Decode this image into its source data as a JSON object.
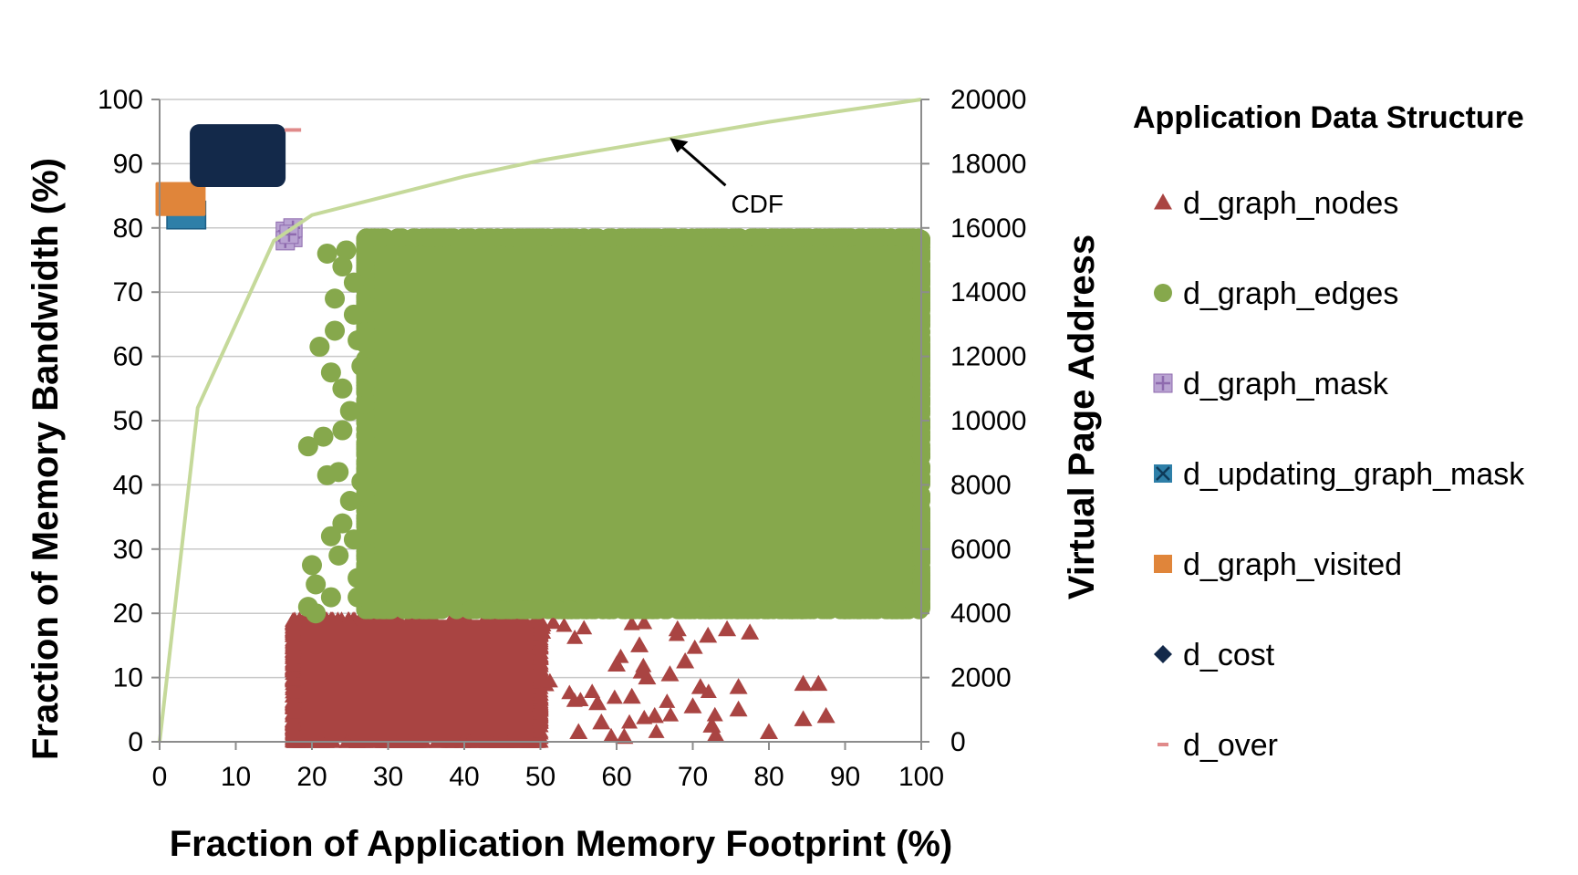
{
  "chart_data": {
    "type": "scatter",
    "title": "",
    "xlabel": "Fraction of Application Memory Footprint (%)",
    "ylabel": "Fraction of Memory Bandwidth (%)",
    "y2label": "Virtual Page Address",
    "xlim": [
      0,
      100
    ],
    "ylim": [
      0,
      100
    ],
    "y2lim": [
      0,
      20000
    ],
    "x_ticks": [
      "0",
      "10",
      "20",
      "30",
      "40",
      "50",
      "60",
      "70",
      "80",
      "90",
      "100"
    ],
    "y_ticks": [
      "0",
      "10",
      "20",
      "30",
      "40",
      "50",
      "60",
      "70",
      "80",
      "90",
      "100"
    ],
    "y2_ticks": [
      "0",
      "2000",
      "4000",
      "6000",
      "8000",
      "10000",
      "12000",
      "14000",
      "16000",
      "18000",
      "20000"
    ],
    "grid": "horizontal",
    "legend": {
      "title": "Application Data Structure",
      "position": "right",
      "entries": [
        {
          "label": "d_graph_nodes",
          "marker": "triangle",
          "color": "#A94442"
        },
        {
          "label": "d_graph_edges",
          "marker": "circle",
          "color": "#86A84C"
        },
        {
          "label": "d_graph_mask",
          "marker": "square-plus",
          "color": "#8E6AAE"
        },
        {
          "label": "d_updating_graph_mask",
          "marker": "square-x",
          "color": "#2E7FA8"
        },
        {
          "label": "d_graph_visited",
          "marker": "square",
          "color": "#E0853A"
        },
        {
          "label": "d_cost",
          "marker": "diamond",
          "color": "#13294A"
        },
        {
          "label": "d_over",
          "marker": "dash",
          "color": "#E08A8A"
        }
      ]
    },
    "series": [
      {
        "name": "d_graph_nodes",
        "axis": "y2",
        "regions": [
          {
            "x": [
              17.5,
              50
            ],
            "y2": [
              0,
              3800
            ],
            "density": "dense"
          },
          {
            "x": [
              50,
              73
            ],
            "y2": [
              0,
              3800
            ],
            "density": "sparse"
          }
        ],
        "points": [
          [
            80,
            300
          ],
          [
            84.5,
            700
          ],
          [
            87.5,
            800
          ],
          [
            84.5,
            1800
          ],
          [
            86.5,
            1800
          ],
          [
            76,
            1700
          ],
          [
            74.5,
            3500
          ],
          [
            77.5,
            3400
          ],
          [
            68,
            3500
          ],
          [
            72,
            3300
          ],
          [
            70,
            1100
          ],
          [
            72.5,
            500
          ],
          [
            73,
            200
          ],
          [
            76,
            1000
          ],
          [
            62,
            1400
          ],
          [
            60,
            2400
          ],
          [
            64,
            2000
          ],
          [
            67,
            2100
          ],
          [
            69,
            2500
          ],
          [
            71,
            1700
          ],
          [
            65,
            800
          ],
          [
            58,
            600
          ],
          [
            61,
            150
          ],
          [
            55,
            300
          ],
          [
            57.5,
            1200
          ],
          [
            63,
            3000
          ]
        ]
      },
      {
        "name": "d_graph_edges",
        "axis": "y2",
        "regions": [
          {
            "x": [
              27,
              100
            ],
            "y2": [
              4100,
              15700
            ],
            "density": "dense"
          }
        ],
        "points": [
          [
            19.5,
            9200
          ],
          [
            20,
            5500
          ],
          [
            20.5,
            4900
          ],
          [
            19.5,
            4200
          ],
          [
            20.5,
            4000
          ],
          [
            21.5,
            9500
          ],
          [
            22,
            8300
          ],
          [
            21,
            12300
          ],
          [
            22.5,
            11500
          ],
          [
            22,
            15200
          ],
          [
            23,
            13800
          ],
          [
            24,
            14800
          ],
          [
            24.5,
            15300
          ],
          [
            23,
            12800
          ],
          [
            24,
            11000
          ],
          [
            25,
            10300
          ],
          [
            24,
            9700
          ],
          [
            23.5,
            8400
          ],
          [
            25,
            7500
          ],
          [
            24,
            6800
          ],
          [
            25.5,
            6300
          ],
          [
            23.5,
            5800
          ],
          [
            26,
            5100
          ],
          [
            22.5,
            4500
          ],
          [
            25.5,
            13300
          ],
          [
            26,
            12500
          ],
          [
            26.5,
            11700
          ],
          [
            25.5,
            14300
          ],
          [
            26,
            4500
          ],
          [
            26.5,
            8100
          ],
          [
            22.5,
            6400
          ]
        ]
      },
      {
        "name": "d_graph_mask",
        "axis": "y2",
        "points": [
          [
            16.5,
            15900
          ],
          [
            17.5,
            15700
          ],
          [
            16.5,
            15600
          ],
          [
            17.5,
            16000
          ],
          [
            17,
            15800
          ]
        ]
      },
      {
        "name": "d_updating_graph_mask",
        "axis": "y2",
        "regions": [
          {
            "x": [
              1.5,
              5.5
            ],
            "y2": [
              16100,
              16700
            ],
            "density": "dense"
          }
        ]
      },
      {
        "name": "d_graph_visited",
        "axis": "y2",
        "regions": [
          {
            "x": [
              0,
              5.5
            ],
            "y2": [
              16500,
              17300
            ],
            "density": "dense"
          }
        ]
      },
      {
        "name": "d_cost",
        "axis": "y2",
        "regions": [
          {
            "x": [
              4.5,
              16
            ],
            "y2": [
              17400,
              19100
            ],
            "density": "dense"
          }
        ]
      },
      {
        "name": "d_over",
        "axis": "y2",
        "points": [
          [
            17.5,
            19050
          ]
        ]
      },
      {
        "name": "CDF",
        "type": "line",
        "axis": "y",
        "x": [
          0,
          5,
          15,
          20,
          30,
          40,
          50,
          60,
          70,
          80,
          90,
          100
        ],
        "values": [
          0,
          52,
          78,
          82,
          85,
          88,
          90.5,
          92.5,
          94.5,
          96.5,
          98.3,
          100
        ]
      }
    ],
    "annotations": [
      {
        "text": "CDF",
        "arrow_to": [
          67,
          94
        ]
      }
    ]
  }
}
